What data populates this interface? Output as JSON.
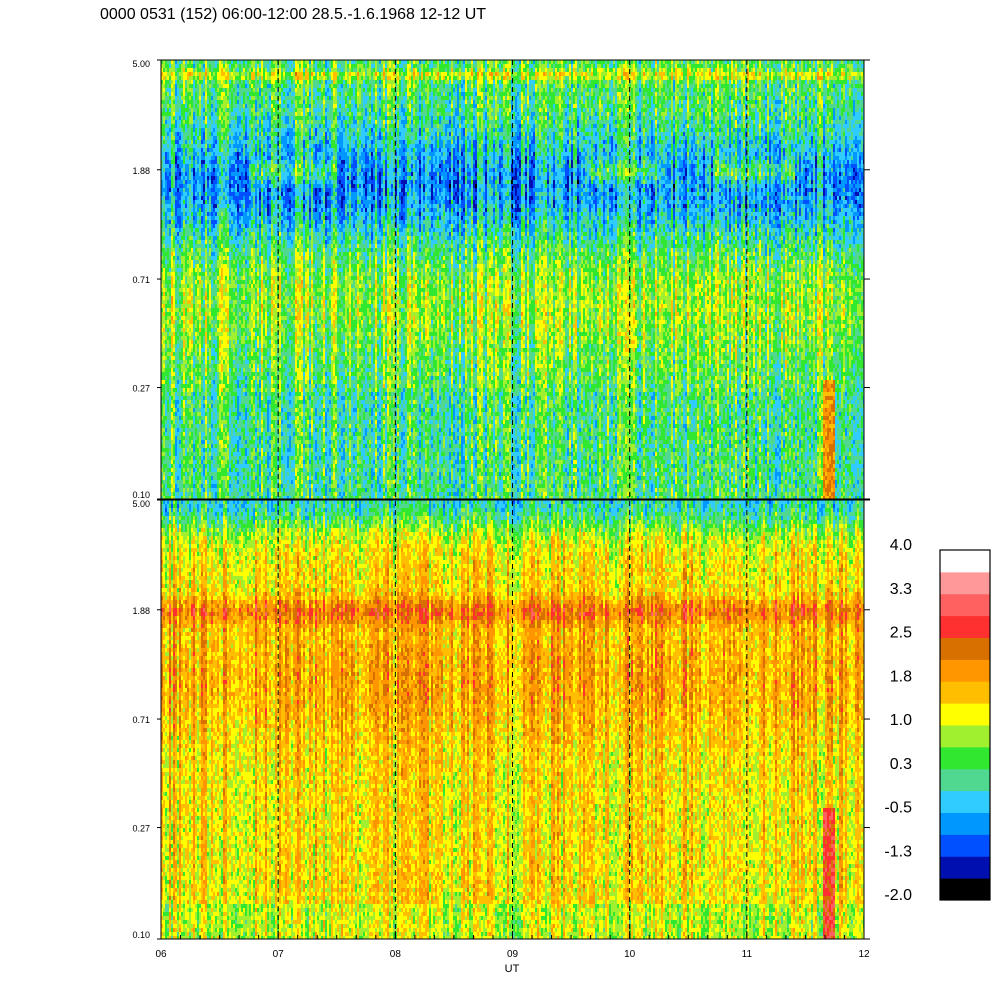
{
  "header": {
    "title": "0000 0531 (152) 06:00-12:00 28.5.-1.6.1968  12-12 UT"
  },
  "chart_data": {
    "type": "heatmap",
    "xlabel": "UT",
    "x_ticks": [
      "06",
      "07",
      "08",
      "09",
      "10",
      "11",
      "12"
    ],
    "x_range": [
      6,
      12
    ],
    "y_scale": "log",
    "y_ticks": [
      "5.00",
      "1.88",
      "0.71",
      "0.27",
      "0.10"
    ],
    "y_tick_values": [
      5.0,
      1.88,
      0.71,
      0.27,
      0.1
    ],
    "y_range": [
      0.1,
      5.0
    ],
    "grid": "dashed vertical lines at each hour",
    "panels": [
      {
        "panel": "upper",
        "dominant_levels": [
          0.3,
          0.7,
          -0.5,
          -1.3,
          1.0
        ],
        "features": [
          {
            "y": 4.5,
            "level": 0.8
          },
          {
            "y": 1.88,
            "x_start": 6.75,
            "x_end": 7.5,
            "level": 1.0
          },
          {
            "y": 1.88,
            "x_start": 9.7,
            "x_end": 10.2,
            "level": 1.0
          },
          {
            "x_start": 11.65,
            "x_end": 11.75,
            "y_start": 0.1,
            "y_end": 0.3,
            "level": 1.8
          }
        ]
      },
      {
        "panel": "lower",
        "dominant_levels": [
          1.8,
          2.2,
          1.0,
          0.5
        ],
        "features": [
          {
            "y": 1.88,
            "level": 2.2
          },
          {
            "y": 4.5,
            "level": 0.7
          },
          {
            "x_start": 11.65,
            "x_end": 11.75,
            "y_start": 0.1,
            "y_end": 0.35,
            "level": 2.6
          }
        ]
      }
    ],
    "colorbar": {
      "tick_labels": [
        "4.0",
        "3.3",
        "2.5",
        "1.8",
        "1.0",
        "0.3",
        "-0.5",
        "-1.3",
        "-2.0"
      ],
      "range": [
        -2.0,
        4.0
      ],
      "colors": [
        "#000000",
        "#0010b0",
        "#0050ff",
        "#0098ff",
        "#30ccff",
        "#50d890",
        "#30e830",
        "#a0f030",
        "#ffff00",
        "#ffbe00",
        "#ff9600",
        "#d87000",
        "#ff3030",
        "#ff6060",
        "#ff9898",
        "#ffffff"
      ]
    }
  }
}
